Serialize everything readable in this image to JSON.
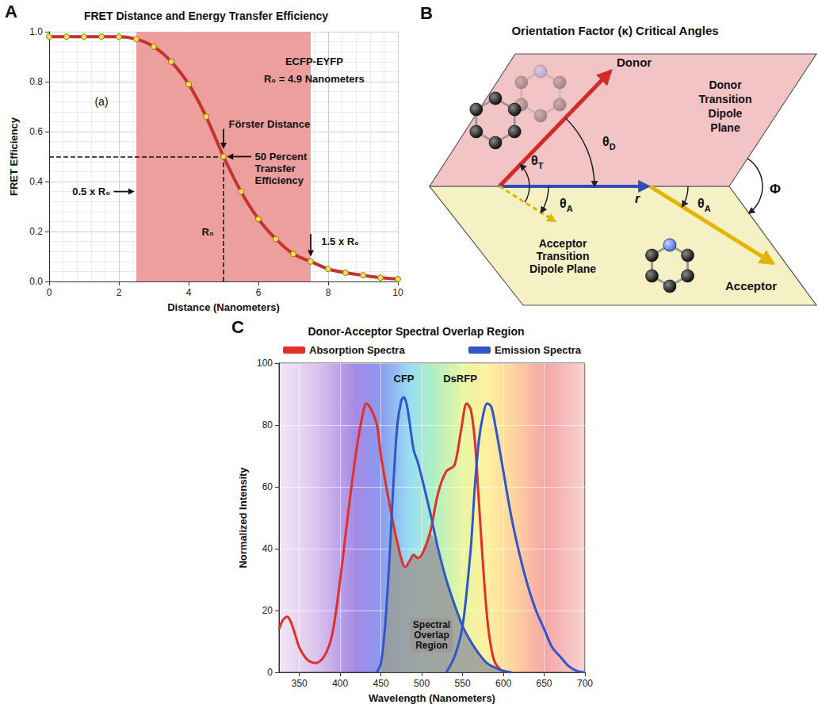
{
  "chart_data": [
    {
      "panel": "A",
      "type": "line",
      "title": "FRET Distance and Energy Transfer Efficiency",
      "x_label": "Distance (Nanometers)",
      "y_label": "FRET Efficiency",
      "x": [
        0,
        0.5,
        1,
        1.5,
        2,
        2.5,
        3,
        3.5,
        4,
        4.5,
        5,
        5.5,
        6,
        6.5,
        7,
        7.5,
        8,
        8.5,
        9,
        9.5,
        10
      ],
      "values": [
        0.98,
        0.98,
        0.98,
        0.98,
        0.98,
        0.97,
        0.94,
        0.88,
        0.79,
        0.66,
        0.5,
        0.36,
        0.25,
        0.17,
        0.11,
        0.08,
        0.05,
        0.035,
        0.025,
        0.015,
        0.01
      ],
      "color": "#c8322c",
      "marker": "circle",
      "line_style": "solid",
      "xlim": [
        0,
        10
      ],
      "xticks": [
        0,
        2,
        4,
        6,
        8,
        10
      ],
      "ylim": [
        0,
        1
      ],
      "yticks": [
        {
          "value": 0,
          "label": "0.0"
        },
        0.2,
        0.4,
        0.6,
        0.8,
        {
          "value": 1,
          "label": "1.0"
        }
      ],
      "grid": true,
      "shaded_x": [
        2.5,
        7.5
      ],
      "reference_point": [
        5,
        0.5
      ],
      "annotations": {
        "panel_note": "(a)",
        "pair": "ECFP-EYFP",
        "r0": "R₀ = 4.9 Nanometers",
        "forster": "Förster Distance",
        "half": "50 Percent Transfer Efficiency",
        "low": "0.5 x R₀",
        "mid": "R₀",
        "high": "1.5 x R₀"
      }
    },
    {
      "panel": "C",
      "type": "line",
      "title": "Donor-Acceptor Spectral Overlap Region",
      "x_label": "Wavelength (Nanometers)",
      "y_label": "Normalized Intensity",
      "xlim": [
        325,
        700
      ],
      "xticks": [
        350,
        400,
        450,
        500,
        550,
        600,
        650,
        700
      ],
      "ylim": [
        0,
        100
      ],
      "yticks": [
        0,
        20,
        40,
        60,
        80,
        100
      ],
      "grid": true,
      "legend": "top",
      "series": [
        {
          "name": "Absorption Spectra",
          "color": "#e0302a",
          "line_style": "solid",
          "x": [
            325,
            330,
            335,
            340,
            345,
            350,
            360,
            370,
            380,
            390,
            400,
            410,
            420,
            428,
            432,
            438,
            445,
            450,
            460,
            470,
            480,
            485,
            490,
            495,
            500,
            510,
            520,
            530,
            540,
            548,
            555,
            560,
            565,
            570,
            575,
            580,
            585,
            590,
            600
          ],
          "values": [
            14,
            17,
            18,
            16,
            12,
            8,
            4,
            3,
            5,
            12,
            30,
            52,
            72,
            84,
            87,
            85,
            80,
            70,
            55,
            42,
            34,
            36,
            38,
            37,
            38,
            45,
            58,
            65,
            67,
            78,
            87,
            85,
            75,
            55,
            35,
            18,
            8,
            3,
            0
          ]
        },
        {
          "name": "Emission Spectra",
          "color": "#2f57c8",
          "line_style": "solid",
          "x": [
            445,
            450,
            455,
            460,
            465,
            470,
            475,
            478,
            482,
            490,
            495,
            500,
            510,
            520,
            530,
            540,
            550,
            560,
            570,
            580,
            590,
            600,
            610
          ],
          "values": [
            0,
            3,
            15,
            35,
            60,
            80,
            88,
            89,
            86,
            72,
            68,
            63,
            52,
            40,
            30,
            22,
            15,
            10,
            6,
            3,
            1.5,
            0.5,
            0
          ]
        },
        {
          "name": "Emission Spectra",
          "color": "#2f57c8",
          "line_style": "solid",
          "x": [
            530,
            540,
            550,
            560,
            565,
            570,
            575,
            580,
            585,
            590,
            600,
            610,
            620,
            630,
            640,
            650,
            660,
            670,
            680,
            690,
            700
          ],
          "values": [
            0,
            5,
            15,
            40,
            60,
            75,
            83,
            87,
            86,
            80,
            65,
            50,
            38,
            28,
            20,
            14,
            8,
            5,
            2,
            0.5,
            0
          ]
        }
      ],
      "overlap_region": {
        "label": "Spectral Overlap Region",
        "color": "#9a9a9a",
        "x": [
          450,
          455,
          460,
          465,
          470,
          480,
          485,
          490,
          495,
          500,
          510,
          520,
          530,
          540,
          550,
          560,
          570,
          580,
          590,
          600
        ],
        "values": [
          3,
          15,
          35,
          48,
          42,
          34,
          36,
          38,
          37,
          38,
          45,
          40,
          30,
          22,
          15,
          10,
          6,
          3,
          1.5,
          0
        ]
      },
      "annotations": {
        "donor": "CFP",
        "acceptor": "DsRFP"
      }
    }
  ],
  "diagram": {
    "panel": "B",
    "title": "Orientation Factor (κ) Critical Angles",
    "labels": {
      "donor": "Donor",
      "donor_plane": "Donor Transition Dipole Plane",
      "acceptor": "Acceptor",
      "acceptor_plane": "Acceptor Transition Dipole Plane",
      "distance": "r",
      "theta_d": "θD",
      "theta_t": "θT",
      "theta_a_lower": "θA",
      "theta_a_upper": "θA",
      "phi": "Φ"
    }
  }
}
